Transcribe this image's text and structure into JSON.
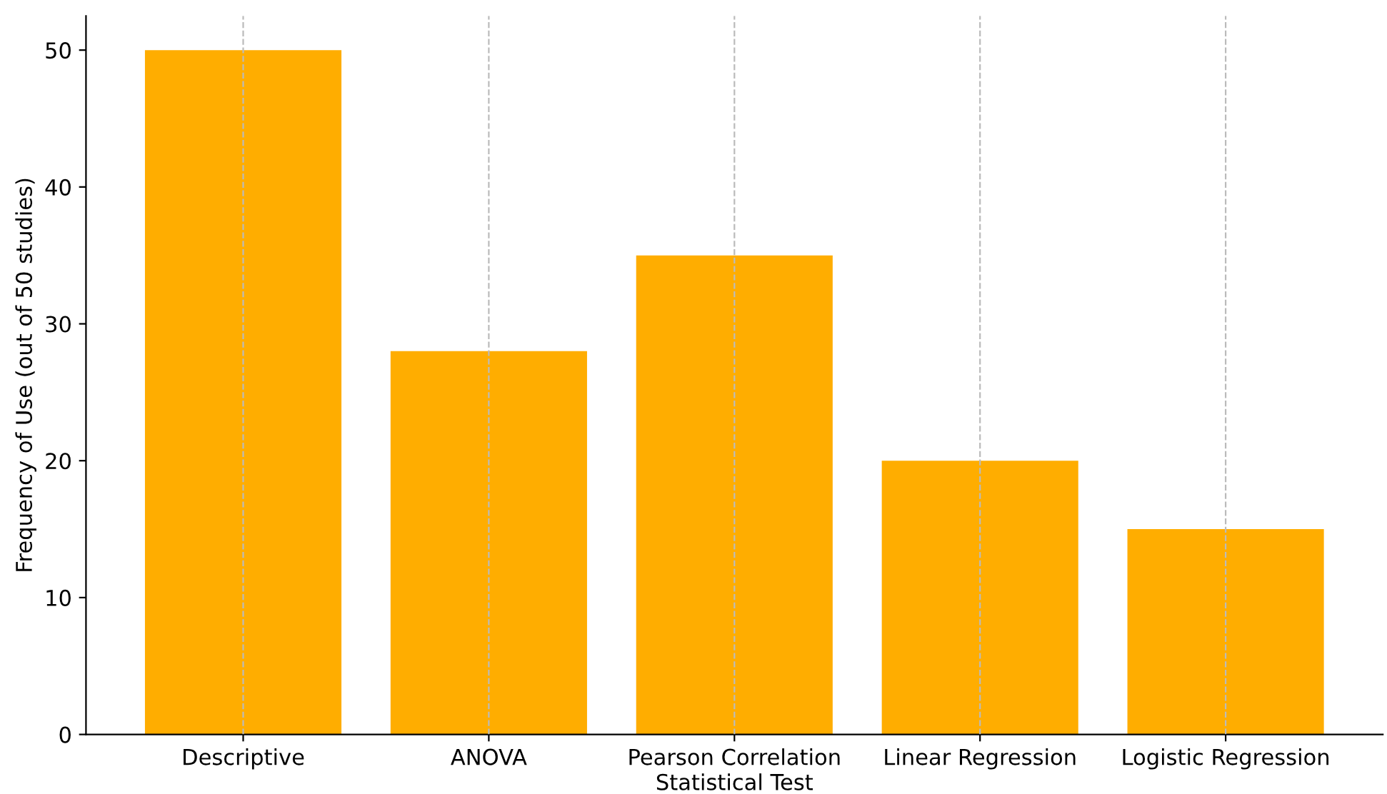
{
  "chart_data": {
    "type": "bar",
    "xlabel": "Statistical Test",
    "ylabel": "Frequency of Use (out of 50 studies)",
    "categories": [
      "Descriptive",
      "ANOVA",
      "Pearson Correlation",
      "Linear Regression",
      "Logistic Regression"
    ],
    "values": [
      50,
      28,
      35,
      20,
      15
    ],
    "color": "#ffad00",
    "ylim": [
      0,
      52.5
    ],
    "yticks": [
      0,
      10,
      20,
      30,
      40,
      50
    ],
    "grid": "x",
    "line_style": "dashed"
  }
}
